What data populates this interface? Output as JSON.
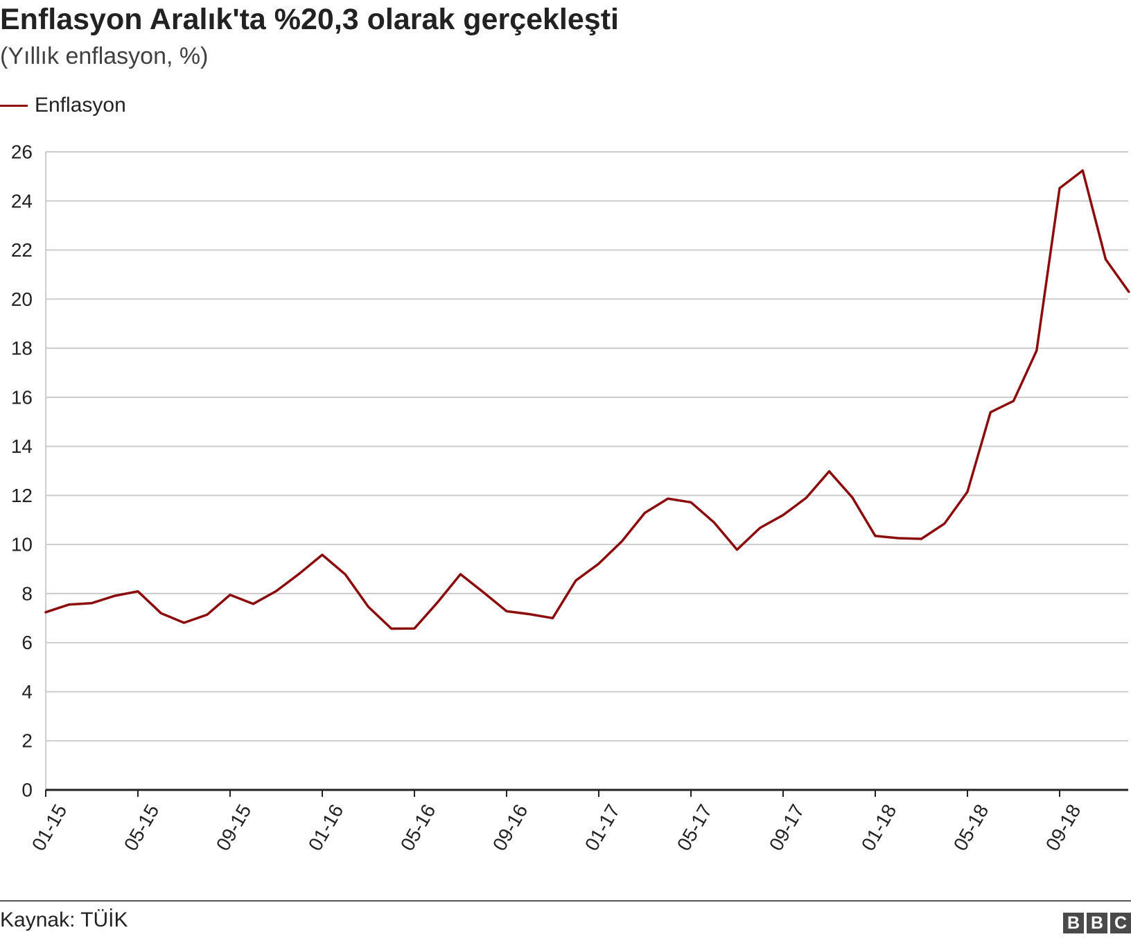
{
  "title": "Enflasyon Aralık'ta %20,3 olarak gerçekleşti",
  "subtitle": "(Yıllık enflasyon, %)",
  "source": "Kaynak: TÜİK",
  "logo": [
    "B",
    "B",
    "C"
  ],
  "colors": {
    "series": "#8b0c0c",
    "grid": "#cccccc",
    "axis": "#222222"
  },
  "chart_data": {
    "type": "line",
    "ylim": [
      0,
      26
    ],
    "yticks": [
      0,
      2,
      4,
      6,
      8,
      10,
      12,
      14,
      16,
      18,
      20,
      22,
      24,
      26
    ],
    "xticks": [
      "01-15",
      "05-15",
      "09-15",
      "01-16",
      "05-16",
      "09-16",
      "01-17",
      "05-17",
      "09-17",
      "01-18",
      "05-18",
      "09-18"
    ],
    "grid": true,
    "legend": "top-left",
    "series": [
      {
        "name": "Enflasyon",
        "x": [
          "01-15",
          "02-15",
          "03-15",
          "04-15",
          "05-15",
          "06-15",
          "07-15",
          "08-15",
          "09-15",
          "10-15",
          "11-15",
          "12-15",
          "01-16",
          "02-16",
          "03-16",
          "04-16",
          "05-16",
          "06-16",
          "07-16",
          "08-16",
          "09-16",
          "10-16",
          "11-16",
          "12-16",
          "01-17",
          "02-17",
          "03-17",
          "04-17",
          "05-17",
          "06-17",
          "07-17",
          "08-17",
          "09-17",
          "10-17",
          "11-17",
          "12-17",
          "01-18",
          "02-18",
          "03-18",
          "04-18",
          "05-18",
          "06-18",
          "07-18",
          "08-18",
          "09-18",
          "10-18",
          "11-18",
          "12-18"
        ],
        "values": [
          7.24,
          7.55,
          7.61,
          7.91,
          8.09,
          7.2,
          6.81,
          7.14,
          7.95,
          7.58,
          8.1,
          8.81,
          9.58,
          8.78,
          7.46,
          6.57,
          6.58,
          7.64,
          8.79,
          8.05,
          7.28,
          7.16,
          7.0,
          8.53,
          9.22,
          10.13,
          11.29,
          11.87,
          11.72,
          10.9,
          9.79,
          10.68,
          11.2,
          11.9,
          12.98,
          11.92,
          10.35,
          10.26,
          10.23,
          10.85,
          12.15,
          15.39,
          15.85,
          17.9,
          24.52,
          25.24,
          21.62,
          20.3
        ]
      }
    ]
  }
}
